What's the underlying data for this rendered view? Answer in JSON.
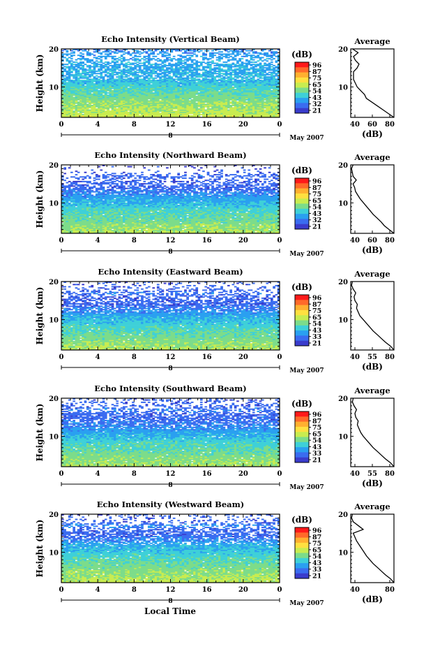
{
  "common": {
    "xlabel": "Local Time",
    "date_label": "May 2007",
    "day_label": "8",
    "colorbar_unit": "(dB)",
    "colorbar_ticks": [
      "96",
      "87",
      "75",
      "65",
      "54",
      "43",
      "32",
      "21"
    ],
    "colorbar_ticks_alt": [
      "96",
      "87",
      "75",
      "65",
      "54",
      "43",
      "33",
      "21"
    ],
    "avg_title": "Average",
    "avg_xlabel": "(dB)",
    "colors": [
      "#ff1a1a",
      "#ff6a2a",
      "#ffb030",
      "#ffe040",
      "#c8ec50",
      "#7cdc8a",
      "#3ed0d8",
      "#2aa0f0",
      "#3a6cf0",
      "#3a3ccc"
    ]
  },
  "chart_data": [
    {
      "type": "heatmap",
      "title": "Echo Intensity (Vertical Beam)",
      "ylabel": "Height (km)",
      "xlim": [
        0,
        24
      ],
      "ylim": [
        2,
        20
      ],
      "xticks": [
        "0",
        "4",
        "8",
        "12",
        "16",
        "20",
        "0"
      ],
      "yticks": [
        "20",
        "10"
      ],
      "colorbar": {
        "min": 21,
        "max": 96,
        "ticks": [
          96,
          87,
          75,
          65,
          54,
          43,
          32,
          21
        ]
      },
      "profile_by_height_dB": [
        [
          2,
          64
        ],
        [
          4,
          60
        ],
        [
          6,
          56
        ],
        [
          8,
          52
        ],
        [
          10,
          47
        ],
        [
          12,
          42
        ],
        [
          14,
          40
        ],
        [
          16,
          39
        ],
        [
          18,
          38
        ],
        [
          20,
          34
        ]
      ],
      "average": {
        "xticks": [
          "40",
          "60",
          "80"
        ],
        "xlim": [
          35,
          82
        ],
        "points": [
          [
            2,
            82
          ],
          [
            3,
            76
          ],
          [
            4,
            70
          ],
          [
            5,
            64
          ],
          [
            6,
            58
          ],
          [
            7,
            52
          ],
          [
            8,
            50
          ],
          [
            9,
            46
          ],
          [
            10,
            42
          ],
          [
            11,
            40
          ],
          [
            12,
            38
          ],
          [
            14,
            38
          ],
          [
            15,
            42
          ],
          [
            16,
            44
          ],
          [
            17,
            40
          ],
          [
            18,
            38
          ],
          [
            19,
            43
          ],
          [
            20,
            37
          ]
        ]
      }
    },
    {
      "type": "heatmap",
      "title": "Echo Intensity (Northward Beam)",
      "ylabel": "Height (km)",
      "xlim": [
        0,
        24
      ],
      "ylim": [
        2,
        20
      ],
      "xticks": [
        "0",
        "4",
        "8",
        "12",
        "16",
        "20",
        "0"
      ],
      "yticks": [
        "20",
        "10"
      ],
      "colorbar": {
        "min": 21,
        "max": 96,
        "ticks": [
          96,
          87,
          75,
          65,
          54,
          43,
          32,
          21
        ]
      },
      "profile_by_height_dB": [
        [
          2,
          60
        ],
        [
          4,
          56
        ],
        [
          6,
          52
        ],
        [
          8,
          48
        ],
        [
          10,
          42
        ],
        [
          12,
          36
        ],
        [
          14,
          28
        ],
        [
          16,
          24
        ],
        [
          17,
          30
        ],
        [
          18,
          22
        ],
        [
          20,
          20
        ]
      ],
      "average": {
        "xticks": [
          "40",
          "60",
          "80"
        ],
        "xlim": [
          28,
          82
        ],
        "points": [
          [
            2,
            82
          ],
          [
            3,
            76
          ],
          [
            4,
            70
          ],
          [
            5,
            66
          ],
          [
            6,
            61
          ],
          [
            7,
            56
          ],
          [
            8,
            52
          ],
          [
            9,
            48
          ],
          [
            10,
            44
          ],
          [
            11,
            40
          ],
          [
            12,
            37
          ],
          [
            13,
            34
          ],
          [
            14,
            33
          ],
          [
            15,
            31
          ],
          [
            16,
            35
          ],
          [
            17,
            31
          ],
          [
            18,
            30
          ],
          [
            19,
            29
          ],
          [
            20,
            31
          ]
        ]
      }
    },
    {
      "type": "heatmap",
      "title": "Echo Intensity (Eastward Beam)",
      "ylabel": "Height (km)",
      "xlim": [
        0,
        24
      ],
      "ylim": [
        2,
        20
      ],
      "xticks": [
        "0",
        "4",
        "8",
        "12",
        "16",
        "20",
        "0"
      ],
      "yticks": [
        "20",
        "10"
      ],
      "colorbar": {
        "min": 21,
        "max": 96,
        "ticks": [
          96,
          87,
          75,
          65,
          54,
          43,
          33,
          21
        ]
      },
      "profile_by_height_dB": [
        [
          2,
          60
        ],
        [
          4,
          56
        ],
        [
          6,
          52
        ],
        [
          8,
          48
        ],
        [
          10,
          42
        ],
        [
          12,
          36
        ],
        [
          14,
          28
        ],
        [
          16,
          26
        ],
        [
          17,
          32
        ],
        [
          18,
          24
        ],
        [
          20,
          22
        ]
      ],
      "average": {
        "xticks": [
          "40",
          "55",
          "80"
        ],
        "xlim": [
          30,
          82
        ],
        "points": [
          [
            2,
            82
          ],
          [
            3,
            78
          ],
          [
            4,
            72
          ],
          [
            5,
            67
          ],
          [
            6,
            62
          ],
          [
            7,
            57
          ],
          [
            8,
            53
          ],
          [
            9,
            49
          ],
          [
            10,
            45
          ],
          [
            11,
            41
          ],
          [
            12,
            39
          ],
          [
            13,
            37
          ],
          [
            14,
            38
          ],
          [
            15,
            35
          ],
          [
            16,
            34
          ],
          [
            17,
            36
          ],
          [
            18,
            33
          ],
          [
            19,
            31
          ],
          [
            20,
            32
          ]
        ]
      }
    },
    {
      "type": "heatmap",
      "title": "Echo Intensity (Southward Beam)",
      "ylabel": "Height (km)",
      "xlim": [
        0,
        24
      ],
      "ylim": [
        2,
        20
      ],
      "xticks": [
        "0",
        "4",
        "8",
        "12",
        "16",
        "20",
        "0"
      ],
      "yticks": [
        "20",
        "10"
      ],
      "colorbar": {
        "min": 21,
        "max": 96,
        "ticks": [
          96,
          87,
          75,
          65,
          54,
          43,
          33,
          21
        ]
      },
      "profile_by_height_dB": [
        [
          2,
          60
        ],
        [
          4,
          56
        ],
        [
          6,
          52
        ],
        [
          8,
          48
        ],
        [
          10,
          42
        ],
        [
          12,
          36
        ],
        [
          14,
          30
        ],
        [
          16,
          28
        ],
        [
          17,
          32
        ],
        [
          18,
          26
        ],
        [
          20,
          24
        ]
      ],
      "average": {
        "xticks": [
          "40",
          "55",
          "80"
        ],
        "xlim": [
          30,
          82
        ],
        "points": [
          [
            2,
            82
          ],
          [
            3,
            78
          ],
          [
            4,
            72
          ],
          [
            5,
            67
          ],
          [
            6,
            62
          ],
          [
            7,
            57
          ],
          [
            8,
            53
          ],
          [
            9,
            49
          ],
          [
            10,
            45
          ],
          [
            11,
            42
          ],
          [
            12,
            40
          ],
          [
            13,
            38
          ],
          [
            14,
            39
          ],
          [
            15,
            36
          ],
          [
            16,
            35
          ],
          [
            17,
            37
          ],
          [
            18,
            34
          ],
          [
            19,
            32
          ],
          [
            20,
            33
          ]
        ]
      }
    },
    {
      "type": "heatmap",
      "title": "Echo Intensity (Westward Beam)",
      "ylabel": "Height (km)",
      "xlim": [
        0,
        24
      ],
      "ylim": [
        2,
        20
      ],
      "xticks": [
        "0",
        "4",
        "8",
        "12",
        "16",
        "20",
        "0"
      ],
      "yticks": [
        "20",
        "10"
      ],
      "colorbar": {
        "min": 21,
        "max": 96,
        "ticks": [
          96,
          87,
          75,
          65,
          54,
          43,
          33,
          21
        ]
      },
      "profile_by_height_dB": [
        [
          2,
          62
        ],
        [
          4,
          58
        ],
        [
          6,
          54
        ],
        [
          8,
          50
        ],
        [
          10,
          45
        ],
        [
          12,
          40
        ],
        [
          14,
          30
        ],
        [
          16,
          26
        ],
        [
          17,
          36
        ],
        [
          18,
          24
        ],
        [
          20,
          22
        ]
      ],
      "average": {
        "xticks": [
          "40",
          "80"
        ],
        "xlim": [
          30,
          82
        ],
        "points": [
          [
            2,
            82
          ],
          [
            3,
            78
          ],
          [
            4,
            72
          ],
          [
            5,
            67
          ],
          [
            6,
            62
          ],
          [
            7,
            57
          ],
          [
            8,
            53
          ],
          [
            9,
            49
          ],
          [
            10,
            46
          ],
          [
            11,
            43
          ],
          [
            12,
            40
          ],
          [
            13,
            37
          ],
          [
            14,
            35
          ],
          [
            15,
            33
          ],
          [
            16,
            45
          ],
          [
            17,
            39
          ],
          [
            18,
            33
          ],
          [
            19,
            31
          ],
          [
            20,
            32
          ]
        ]
      }
    }
  ]
}
